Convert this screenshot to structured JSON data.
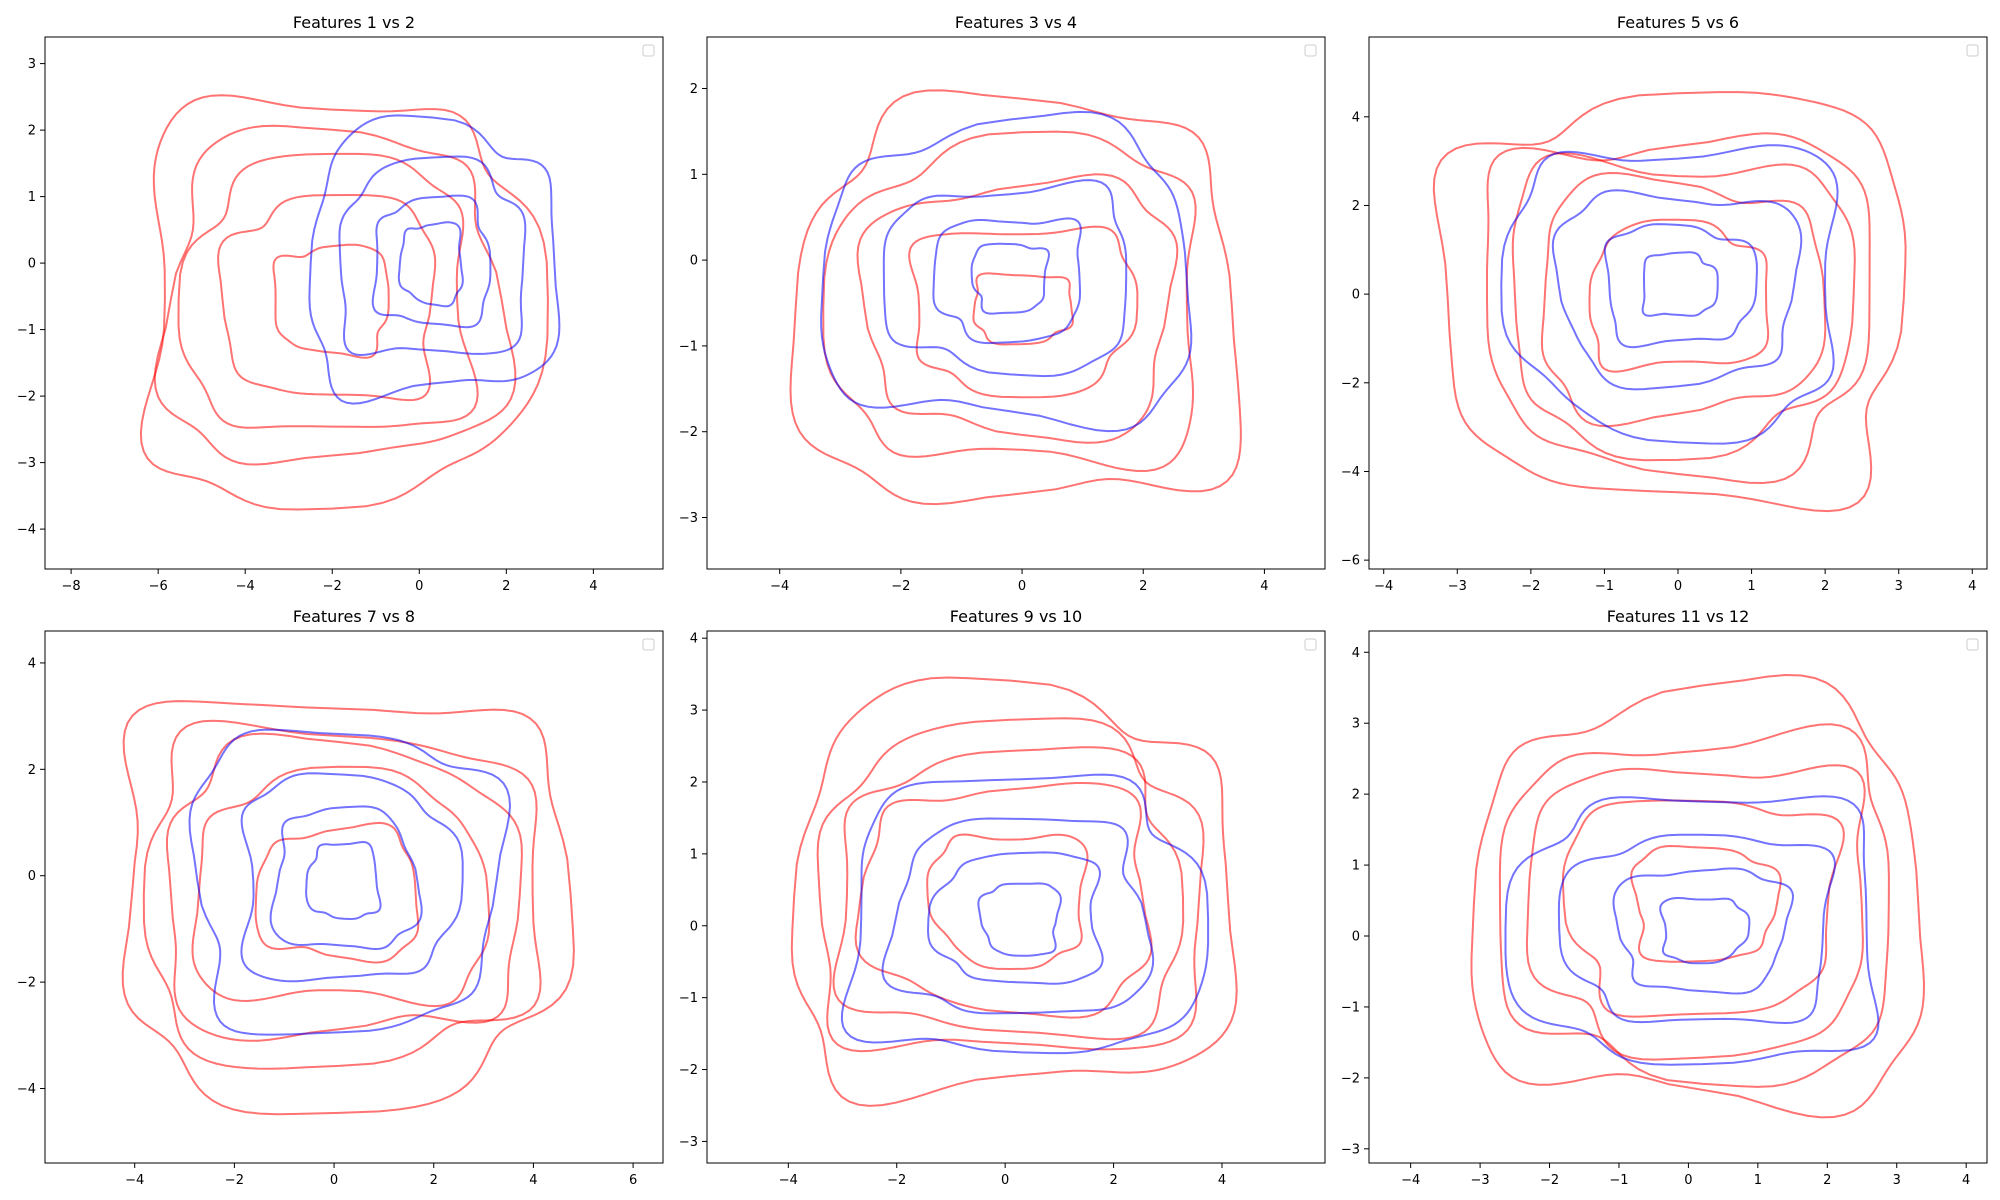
{
  "colors": {
    "red_series": "#ff0000",
    "blue_series": "#0000ff"
  },
  "chart_data": [
    {
      "type": "contour",
      "title": "Features 1 vs 2",
      "xlim": [
        -8.6,
        5.6
      ],
      "ylim": [
        -4.6,
        3.4
      ],
      "xticks": [
        -8,
        -6,
        -4,
        -2,
        0,
        2,
        4
      ],
      "yticks": [
        -4,
        -3,
        -2,
        -1,
        0,
        1,
        2,
        3
      ],
      "red": {
        "cx": -2.0,
        "cy": -0.55,
        "levels": [
          [
            4.4,
            3.0
          ],
          [
            3.8,
            2.45
          ],
          [
            3.2,
            2.05
          ],
          [
            2.4,
            1.5
          ],
          [
            1.3,
            0.8
          ]
        ]
      },
      "blue": {
        "cx": 0.3,
        "cy": 0.0,
        "levels": [
          [
            2.8,
            2.0
          ],
          [
            2.1,
            1.45
          ],
          [
            1.3,
            0.95
          ],
          [
            0.7,
            0.6
          ]
        ]
      },
      "legend": "top-right"
    },
    {
      "type": "contour",
      "title": "Features 3 vs 4",
      "xlim": [
        -5.2,
        5.0
      ],
      "ylim": [
        -3.6,
        2.6
      ],
      "xticks": [
        -4,
        -2,
        0,
        2,
        4
      ],
      "yticks": [
        -3,
        -2,
        -1,
        0,
        1,
        2
      ],
      "red": {
        "cx": 0.0,
        "cy": -0.55,
        "levels": [
          [
            3.6,
            2.3
          ],
          [
            3.0,
            1.85
          ],
          [
            2.5,
            1.45
          ],
          [
            1.8,
            0.95
          ],
          [
            0.8,
            0.4
          ]
        ]
      },
      "blue": {
        "cx": -0.2,
        "cy": -0.2,
        "levels": [
          [
            3.0,
            1.7
          ],
          [
            2.0,
            1.05
          ],
          [
            1.2,
            0.7
          ],
          [
            0.6,
            0.4
          ]
        ]
      },
      "legend": "top-right"
    },
    {
      "type": "contour",
      "title": "Features 5 vs 6",
      "xlim": [
        -4.2,
        4.2
      ],
      "ylim": [
        -6.2,
        5.8
      ],
      "xticks": [
        -4,
        -3,
        -2,
        -1,
        0,
        1,
        2,
        3,
        4
      ],
      "yticks": [
        -6,
        -4,
        -2,
        0,
        2,
        4
      ],
      "red": {
        "cx": 0.0,
        "cy": -0.1,
        "levels": [
          [
            3.1,
            4.5
          ],
          [
            2.6,
            3.7
          ],
          [
            2.3,
            3.2
          ],
          [
            1.9,
            2.6
          ],
          [
            1.2,
            1.6
          ]
        ]
      },
      "blue": {
        "cx": 0.0,
        "cy": 0.2,
        "levels": [
          [
            2.2,
            3.2
          ],
          [
            1.6,
            2.1
          ],
          [
            1.0,
            1.3
          ],
          [
            0.5,
            0.7
          ]
        ]
      },
      "legend": "top-right"
    },
    {
      "type": "contour",
      "title": "Features 7 vs 8",
      "xlim": [
        -5.8,
        6.6
      ],
      "ylim": [
        -5.4,
        4.6
      ],
      "xticks": [
        -4,
        -2,
        0,
        2,
        4,
        6
      ],
      "yticks": [
        -4,
        -2,
        0,
        2,
        4
      ],
      "red": {
        "cx": 0.1,
        "cy": -0.35,
        "levels": [
          [
            4.4,
            3.8
          ],
          [
            3.9,
            3.1
          ],
          [
            3.5,
            2.7
          ],
          [
            2.9,
            2.1
          ],
          [
            1.6,
            1.2
          ]
        ]
      },
      "blue": {
        "cx": 0.2,
        "cy": -0.1,
        "levels": [
          [
            3.0,
            2.8
          ],
          [
            2.1,
            1.9
          ],
          [
            1.4,
            1.3
          ],
          [
            0.7,
            0.7
          ]
        ]
      },
      "legend": "top-right"
    },
    {
      "type": "contour",
      "title": "Features 9 vs 10",
      "xlim": [
        -5.5,
        5.9
      ],
      "ylim": [
        -3.3,
        4.1
      ],
      "xticks": [
        -4,
        -2,
        0,
        2,
        4
      ],
      "yticks": [
        -3,
        -2,
        -1,
        0,
        1,
        2,
        3,
        4
      ],
      "red": {
        "cx": 0.1,
        "cy": 0.4,
        "levels": [
          [
            4.0,
            2.75
          ],
          [
            3.5,
            2.25
          ],
          [
            3.1,
            1.95
          ],
          [
            2.6,
            1.55
          ],
          [
            1.4,
            0.9
          ]
        ]
      },
      "blue": {
        "cx": 0.3,
        "cy": 0.1,
        "levels": [
          [
            3.2,
            1.9
          ],
          [
            2.3,
            1.35
          ],
          [
            1.5,
            0.9
          ],
          [
            0.7,
            0.5
          ]
        ]
      },
      "legend": "top-right"
    },
    {
      "type": "contour",
      "title": "Features 11 vs 12",
      "xlim": [
        -4.6,
        4.3
      ],
      "ylim": [
        -3.2,
        4.3
      ],
      "xticks": [
        -4,
        -3,
        -2,
        -1,
        0,
        1,
        2,
        3,
        4
      ],
      "yticks": [
        -3,
        -2,
        -1,
        0,
        1,
        2,
        3,
        4
      ],
      "red": {
        "cx": 0.2,
        "cy": 0.45,
        "levels": [
          [
            3.2,
            2.85
          ],
          [
            2.8,
            2.35
          ],
          [
            2.4,
            2.0
          ],
          [
            1.9,
            1.5
          ],
          [
            1.0,
            0.8
          ]
        ]
      },
      "blue": {
        "cx": 0.2,
        "cy": 0.1,
        "levels": [
          [
            2.6,
            1.85
          ],
          [
            1.9,
            1.3
          ],
          [
            1.2,
            0.85
          ],
          [
            0.6,
            0.45
          ]
        ]
      },
      "legend": "top-right"
    }
  ]
}
